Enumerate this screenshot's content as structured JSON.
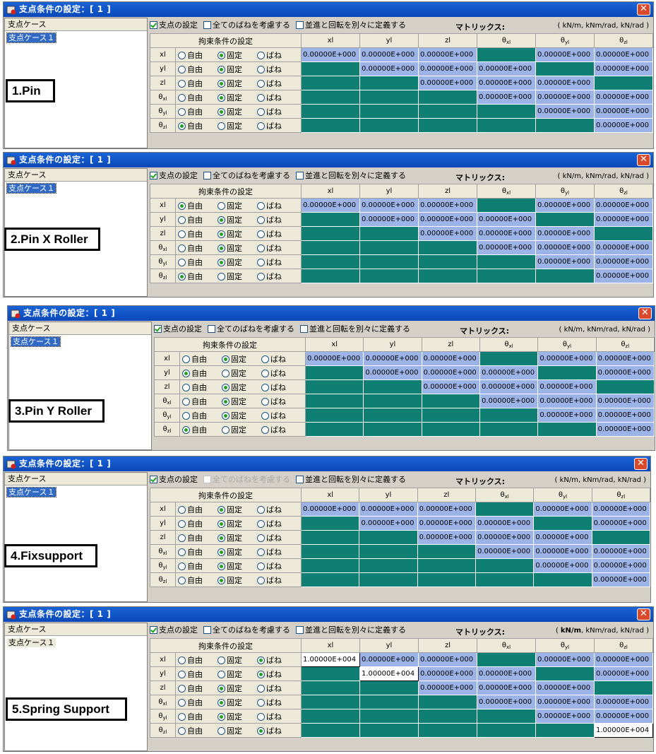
{
  "window_title": "支点条件の設定：[ 1 ]",
  "close_glyph": "✕",
  "case_list_header": "支点ケース",
  "case_item": "支点ケース１",
  "options": {
    "support_setting": "支点の設定",
    "consider_all_springs": "全てのばねを考慮する",
    "translation_rotation_separately": "並進と回転を別々に定義する"
  },
  "matrix_label": "マトリックス:",
  "units_a": "( kN/m, kNm/rad, kN/rad )",
  "units_b": "( kN/m, kNm/rad, kN/rad )",
  "constraint_header": "拘束条件の設定",
  "radio_labels": [
    "自由",
    "固定",
    "ばね"
  ],
  "col_headers": [
    "xl",
    "yl",
    "zl",
    "θxl",
    "θyl",
    "θzl"
  ],
  "row_headers": [
    "xl",
    "yl",
    "zl",
    "θxl",
    "θyl",
    "θzl"
  ],
  "zero_value": "0.00000E+000",
  "panels": [
    {
      "annotation": "1.Pin",
      "support_checked": true,
      "all_springs_checked": false,
      "all_springs_disabled": false,
      "separate_checked": false,
      "case_selected": true,
      "radios": [
        "固定",
        "固定",
        "固定",
        "固定",
        "固定",
        "自由"
      ],
      "units_bold_first": false,
      "cells": [
        [
          "0.00000E+000",
          "0.00000E+000",
          "0.00000E+000",
          "",
          "0.00000E+000",
          "0.00000E+000"
        ],
        [
          "",
          "0.00000E+000",
          "0.00000E+000",
          "0.00000E+000",
          "",
          "0.00000E+000"
        ],
        [
          "",
          "",
          "0.00000E+000",
          "0.00000E+000",
          "0.00000E+000",
          ""
        ],
        [
          "",
          "",
          "",
          "0.00000E+000",
          "0.00000E+000",
          "0.00000E+000"
        ],
        [
          "",
          "",
          "",
          "",
          "0.00000E+000",
          "0.00000E+000"
        ],
        [
          "",
          "",
          "",
          "",
          "",
          "0.00000E+000"
        ]
      ]
    },
    {
      "annotation": "2.Pin X Roller",
      "support_checked": true,
      "all_springs_checked": false,
      "all_springs_disabled": false,
      "separate_checked": false,
      "case_selected": true,
      "radios": [
        "自由",
        "固定",
        "固定",
        "固定",
        "固定",
        "自由"
      ],
      "units_bold_first": false,
      "cells": [
        [
          "0.00000E+000",
          "0.00000E+000",
          "0.00000E+000",
          "",
          "0.00000E+000",
          "0.00000E+000"
        ],
        [
          "",
          "0.00000E+000",
          "0.00000E+000",
          "0.00000E+000",
          "",
          "0.00000E+000"
        ],
        [
          "",
          "",
          "0.00000E+000",
          "0.00000E+000",
          "0.00000E+000",
          ""
        ],
        [
          "",
          "",
          "",
          "0.00000E+000",
          "0.00000E+000",
          "0.00000E+000"
        ],
        [
          "",
          "",
          "",
          "",
          "0.00000E+000",
          "0.00000E+000"
        ],
        [
          "",
          "",
          "",
          "",
          "",
          "0.00000E+000"
        ]
      ]
    },
    {
      "annotation": "3.Pin Y Roller",
      "support_checked": true,
      "all_springs_checked": false,
      "all_springs_disabled": false,
      "separate_checked": false,
      "case_selected": true,
      "radios": [
        "固定",
        "自由",
        "固定",
        "固定",
        "固定",
        "自由"
      ],
      "units_bold_first": false,
      "cells": [
        [
          "0.00000E+000",
          "0.00000E+000",
          "0.00000E+000",
          "",
          "0.00000E+000",
          "0.00000E+000"
        ],
        [
          "",
          "0.00000E+000",
          "0.00000E+000",
          "0.00000E+000",
          "",
          "0.00000E+000"
        ],
        [
          "",
          "",
          "0.00000E+000",
          "0.00000E+000",
          "0.00000E+000",
          ""
        ],
        [
          "",
          "",
          "",
          "0.00000E+000",
          "0.00000E+000",
          "0.00000E+000"
        ],
        [
          "",
          "",
          "",
          "",
          "0.00000E+000",
          "0.00000E+000"
        ],
        [
          "",
          "",
          "",
          "",
          "",
          "0.00000E+000"
        ]
      ]
    },
    {
      "annotation": "4.Fixsupport",
      "support_checked": true,
      "all_springs_checked": false,
      "all_springs_disabled": true,
      "separate_checked": false,
      "case_selected": true,
      "radios": [
        "固定",
        "固定",
        "固定",
        "固定",
        "固定",
        "固定"
      ],
      "units_bold_first": false,
      "cells": [
        [
          "0.00000E+000",
          "0.00000E+000",
          "0.00000E+000",
          "",
          "0.00000E+000",
          "0.00000E+000"
        ],
        [
          "",
          "0.00000E+000",
          "0.00000E+000",
          "0.00000E+000",
          "",
          "0.00000E+000"
        ],
        [
          "",
          "",
          "0.00000E+000",
          "0.00000E+000",
          "0.00000E+000",
          ""
        ],
        [
          "",
          "",
          "",
          "0.00000E+000",
          "0.00000E+000",
          "0.00000E+000"
        ],
        [
          "",
          "",
          "",
          "",
          "0.00000E+000",
          "0.00000E+000"
        ],
        [
          "",
          "",
          "",
          "",
          "",
          "0.00000E+000"
        ]
      ]
    },
    {
      "annotation": "5.Spring Support",
      "support_checked": true,
      "all_springs_checked": false,
      "all_springs_disabled": false,
      "separate_checked": false,
      "case_selected": false,
      "radios": [
        "ばね",
        "ばね",
        "固定",
        "固定",
        "固定",
        "ばね"
      ],
      "units_bold_first": true,
      "cells": [
        [
          "1.00000E+004",
          "0.00000E+000",
          "0.00000E+000",
          "",
          "0.00000E+000",
          "0.00000E+000"
        ],
        [
          "",
          "1.00000E+004",
          "0.00000E+000",
          "0.00000E+000",
          "",
          "0.00000E+000"
        ],
        [
          "",
          "",
          "0.00000E+000",
          "0.00000E+000",
          "0.00000E+000",
          ""
        ],
        [
          "",
          "",
          "",
          "0.00000E+000",
          "0.00000E+000",
          "0.00000E+000"
        ],
        [
          "",
          "",
          "",
          "",
          "0.00000E+000",
          "0.00000E+000"
        ],
        [
          "",
          "",
          "",
          "",
          "",
          "1.00000E+004"
        ]
      ],
      "white_cells": [
        [
          0,
          0
        ],
        [
          1,
          1
        ],
        [
          5,
          5
        ]
      ]
    }
  ],
  "colors": {
    "title_bar": "#0a48b9",
    "value_cell": "#9cb3e8",
    "masked_cell": "#0f7f73",
    "selection": "#316ac5"
  }
}
